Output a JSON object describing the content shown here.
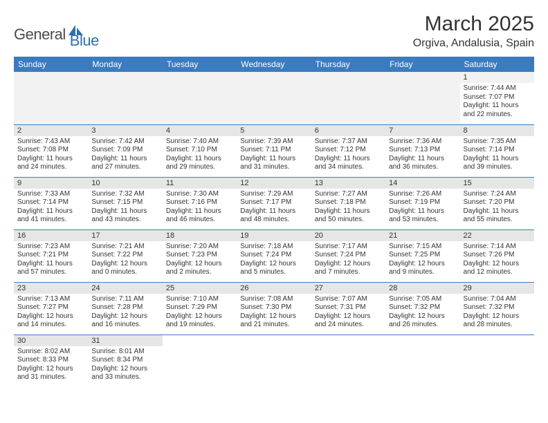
{
  "logo": {
    "text_dark": "General",
    "text_blue": "Blue",
    "icon_color": "#2f6fb0"
  },
  "title": "March 2025",
  "location": "Orgiva, Andalusia, Spain",
  "colors": {
    "header_bg": "#3b7bbf",
    "header_text": "#ffffff",
    "daynum_bg": "#e6e6e6",
    "firstrow_bg": "#f2f2f2",
    "border": "#3b7bbf",
    "text": "#333333"
  },
  "day_headers": [
    "Sunday",
    "Monday",
    "Tuesday",
    "Wednesday",
    "Thursday",
    "Friday",
    "Saturday"
  ],
  "weeks": [
    [
      null,
      null,
      null,
      null,
      null,
      null,
      {
        "n": "1",
        "sr": "Sunrise: 7:44 AM",
        "ss": "Sunset: 7:07 PM",
        "dl": "Daylight: 11 hours and 22 minutes."
      }
    ],
    [
      {
        "n": "2",
        "sr": "Sunrise: 7:43 AM",
        "ss": "Sunset: 7:08 PM",
        "dl": "Daylight: 11 hours and 24 minutes."
      },
      {
        "n": "3",
        "sr": "Sunrise: 7:42 AM",
        "ss": "Sunset: 7:09 PM",
        "dl": "Daylight: 11 hours and 27 minutes."
      },
      {
        "n": "4",
        "sr": "Sunrise: 7:40 AM",
        "ss": "Sunset: 7:10 PM",
        "dl": "Daylight: 11 hours and 29 minutes."
      },
      {
        "n": "5",
        "sr": "Sunrise: 7:39 AM",
        "ss": "Sunset: 7:11 PM",
        "dl": "Daylight: 11 hours and 31 minutes."
      },
      {
        "n": "6",
        "sr": "Sunrise: 7:37 AM",
        "ss": "Sunset: 7:12 PM",
        "dl": "Daylight: 11 hours and 34 minutes."
      },
      {
        "n": "7",
        "sr": "Sunrise: 7:36 AM",
        "ss": "Sunset: 7:13 PM",
        "dl": "Daylight: 11 hours and 36 minutes."
      },
      {
        "n": "8",
        "sr": "Sunrise: 7:35 AM",
        "ss": "Sunset: 7:14 PM",
        "dl": "Daylight: 11 hours and 39 minutes."
      }
    ],
    [
      {
        "n": "9",
        "sr": "Sunrise: 7:33 AM",
        "ss": "Sunset: 7:14 PM",
        "dl": "Daylight: 11 hours and 41 minutes."
      },
      {
        "n": "10",
        "sr": "Sunrise: 7:32 AM",
        "ss": "Sunset: 7:15 PM",
        "dl": "Daylight: 11 hours and 43 minutes."
      },
      {
        "n": "11",
        "sr": "Sunrise: 7:30 AM",
        "ss": "Sunset: 7:16 PM",
        "dl": "Daylight: 11 hours and 46 minutes."
      },
      {
        "n": "12",
        "sr": "Sunrise: 7:29 AM",
        "ss": "Sunset: 7:17 PM",
        "dl": "Daylight: 11 hours and 48 minutes."
      },
      {
        "n": "13",
        "sr": "Sunrise: 7:27 AM",
        "ss": "Sunset: 7:18 PM",
        "dl": "Daylight: 11 hours and 50 minutes."
      },
      {
        "n": "14",
        "sr": "Sunrise: 7:26 AM",
        "ss": "Sunset: 7:19 PM",
        "dl": "Daylight: 11 hours and 53 minutes."
      },
      {
        "n": "15",
        "sr": "Sunrise: 7:24 AM",
        "ss": "Sunset: 7:20 PM",
        "dl": "Daylight: 11 hours and 55 minutes."
      }
    ],
    [
      {
        "n": "16",
        "sr": "Sunrise: 7:23 AM",
        "ss": "Sunset: 7:21 PM",
        "dl": "Daylight: 11 hours and 57 minutes."
      },
      {
        "n": "17",
        "sr": "Sunrise: 7:21 AM",
        "ss": "Sunset: 7:22 PM",
        "dl": "Daylight: 12 hours and 0 minutes."
      },
      {
        "n": "18",
        "sr": "Sunrise: 7:20 AM",
        "ss": "Sunset: 7:23 PM",
        "dl": "Daylight: 12 hours and 2 minutes."
      },
      {
        "n": "19",
        "sr": "Sunrise: 7:18 AM",
        "ss": "Sunset: 7:24 PM",
        "dl": "Daylight: 12 hours and 5 minutes."
      },
      {
        "n": "20",
        "sr": "Sunrise: 7:17 AM",
        "ss": "Sunset: 7:24 PM",
        "dl": "Daylight: 12 hours and 7 minutes."
      },
      {
        "n": "21",
        "sr": "Sunrise: 7:15 AM",
        "ss": "Sunset: 7:25 PM",
        "dl": "Daylight: 12 hours and 9 minutes."
      },
      {
        "n": "22",
        "sr": "Sunrise: 7:14 AM",
        "ss": "Sunset: 7:26 PM",
        "dl": "Daylight: 12 hours and 12 minutes."
      }
    ],
    [
      {
        "n": "23",
        "sr": "Sunrise: 7:13 AM",
        "ss": "Sunset: 7:27 PM",
        "dl": "Daylight: 12 hours and 14 minutes."
      },
      {
        "n": "24",
        "sr": "Sunrise: 7:11 AM",
        "ss": "Sunset: 7:28 PM",
        "dl": "Daylight: 12 hours and 16 minutes."
      },
      {
        "n": "25",
        "sr": "Sunrise: 7:10 AM",
        "ss": "Sunset: 7:29 PM",
        "dl": "Daylight: 12 hours and 19 minutes."
      },
      {
        "n": "26",
        "sr": "Sunrise: 7:08 AM",
        "ss": "Sunset: 7:30 PM",
        "dl": "Daylight: 12 hours and 21 minutes."
      },
      {
        "n": "27",
        "sr": "Sunrise: 7:07 AM",
        "ss": "Sunset: 7:31 PM",
        "dl": "Daylight: 12 hours and 24 minutes."
      },
      {
        "n": "28",
        "sr": "Sunrise: 7:05 AM",
        "ss": "Sunset: 7:32 PM",
        "dl": "Daylight: 12 hours and 26 minutes."
      },
      {
        "n": "29",
        "sr": "Sunrise: 7:04 AM",
        "ss": "Sunset: 7:32 PM",
        "dl": "Daylight: 12 hours and 28 minutes."
      }
    ],
    [
      {
        "n": "30",
        "sr": "Sunrise: 8:02 AM",
        "ss": "Sunset: 8:33 PM",
        "dl": "Daylight: 12 hours and 31 minutes."
      },
      {
        "n": "31",
        "sr": "Sunrise: 8:01 AM",
        "ss": "Sunset: 8:34 PM",
        "dl": "Daylight: 12 hours and 33 minutes."
      },
      null,
      null,
      null,
      null,
      null
    ]
  ]
}
